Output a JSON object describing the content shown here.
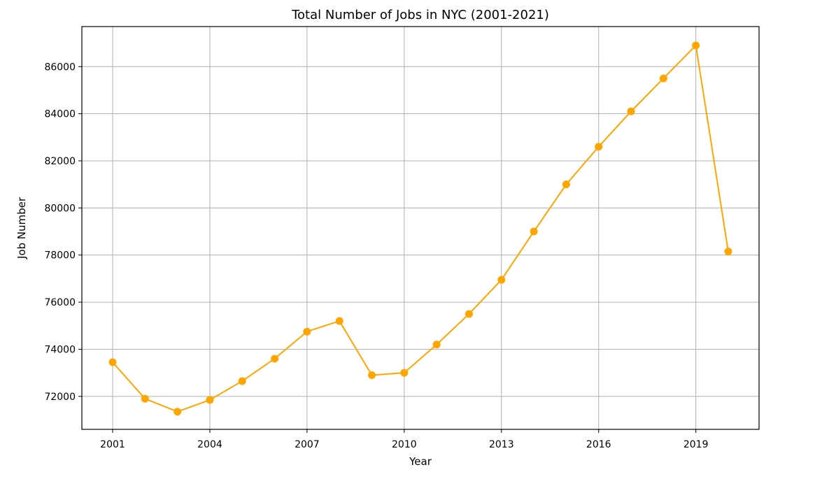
{
  "chart_data": {
    "type": "line",
    "title": "Total Number of Jobs in NYC (2001-2021)",
    "xlabel": "Year",
    "ylabel": "Job Number",
    "xlim": [
      2000.05,
      2020.95
    ],
    "ylim": [
      70600,
      87700
    ],
    "x_ticks": [
      2001,
      2004,
      2007,
      2010,
      2013,
      2016,
      2019
    ],
    "y_ticks": [
      72000,
      74000,
      76000,
      78000,
      80000,
      82000,
      84000,
      86000
    ],
    "grid": true,
    "series": [
      {
        "color": "#FFA500",
        "marker": "circle",
        "x": [
          2001,
          2002,
          2003,
          2004,
          2005,
          2006,
          2007,
          2008,
          2009,
          2010,
          2011,
          2012,
          2013,
          2014,
          2015,
          2016,
          2017,
          2018,
          2019,
          2020
        ],
        "values": [
          73450,
          71900,
          71350,
          71850,
          72650,
          73600,
          74750,
          75200,
          72900,
          73000,
          74200,
          75500,
          76950,
          79000,
          81000,
          82600,
          84100,
          85500,
          86900,
          78150
        ]
      }
    ]
  }
}
